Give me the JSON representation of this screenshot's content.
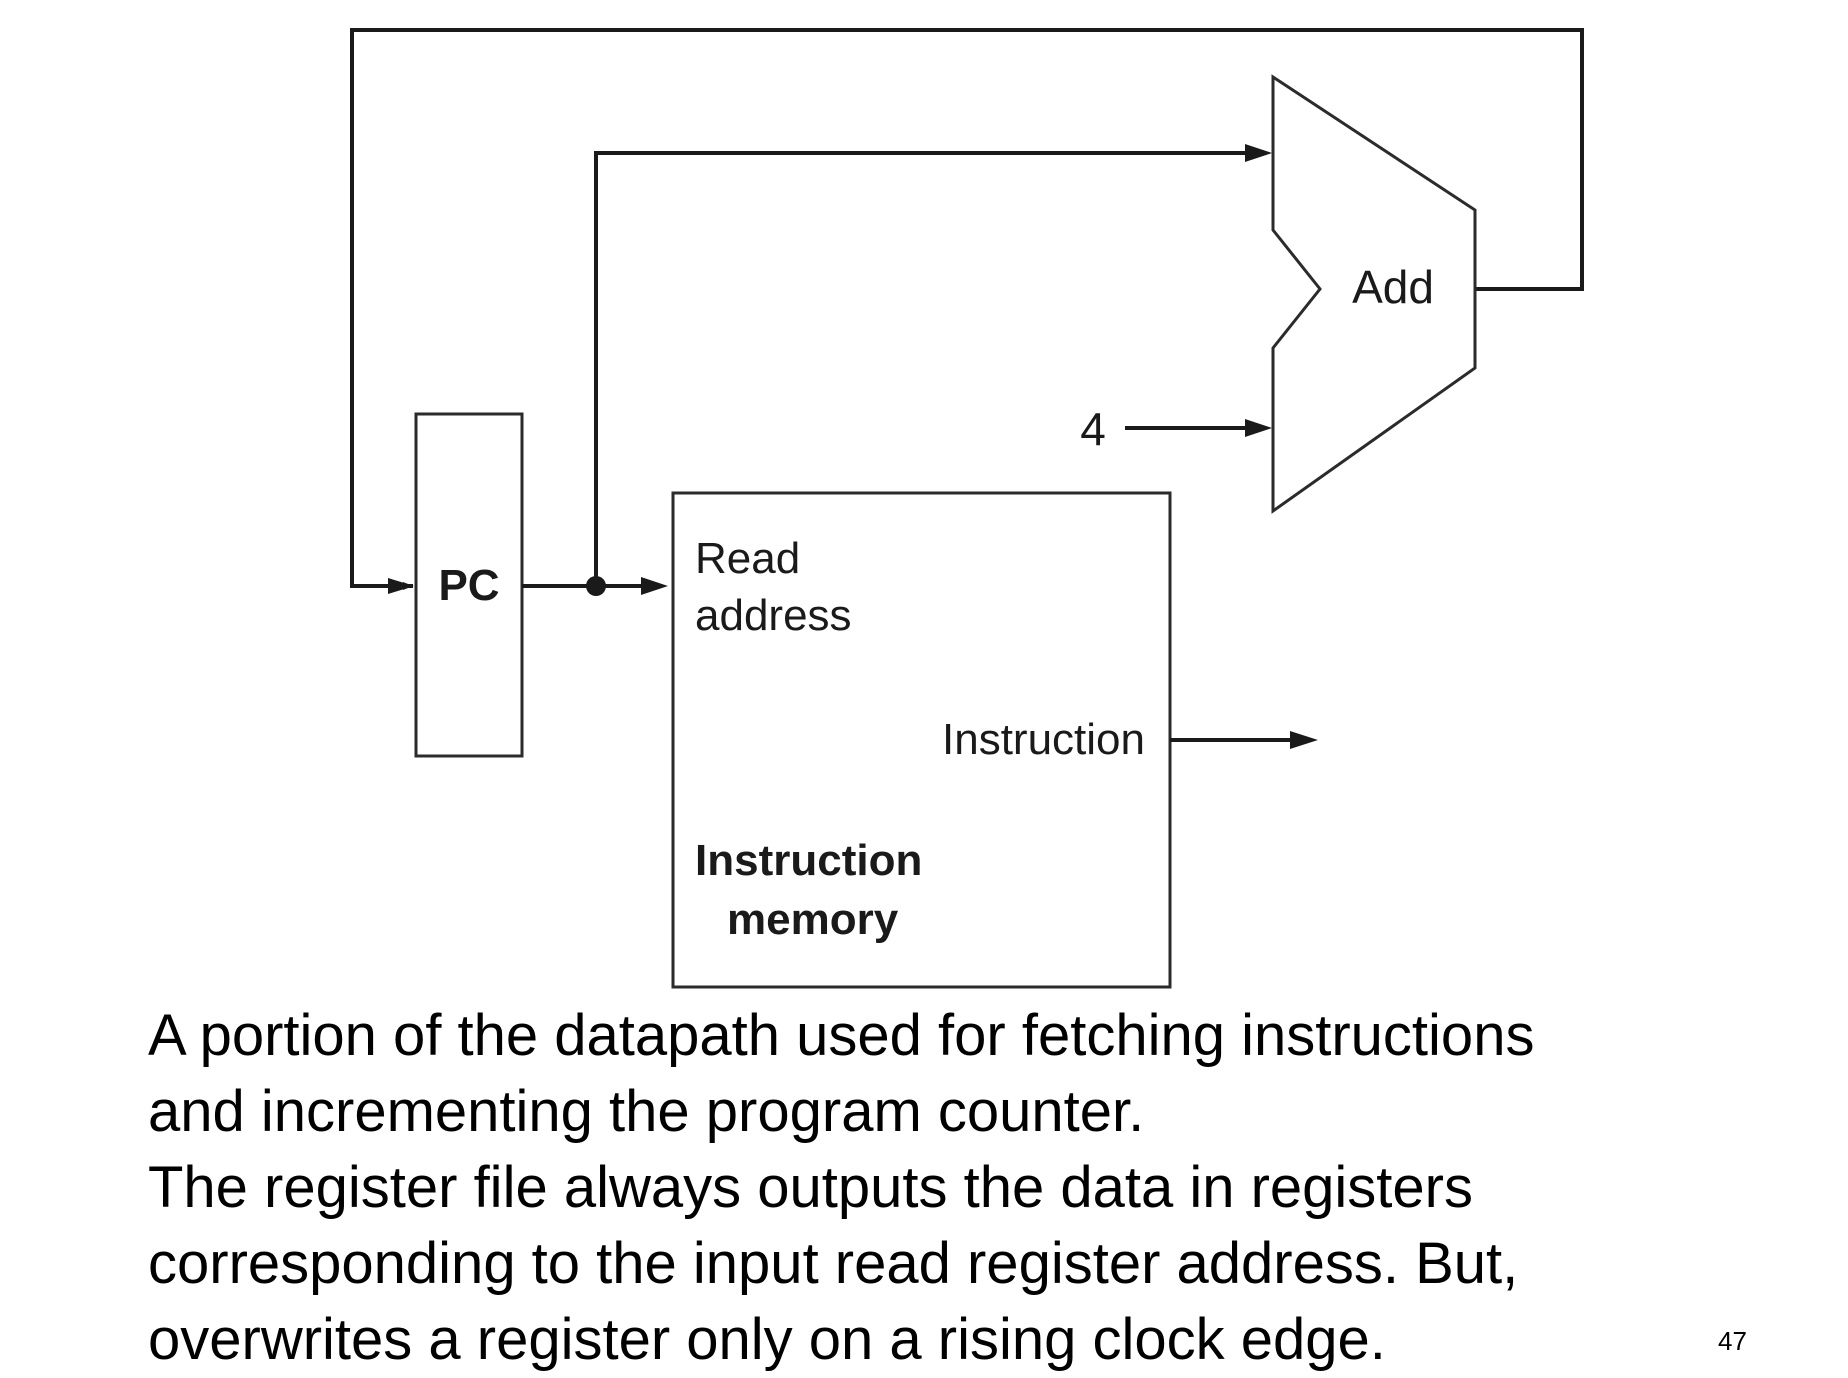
{
  "diagram": {
    "pc_label": "PC",
    "adder_label": "Add",
    "constant_label": "4",
    "memory": {
      "input_label_line1": "Read",
      "input_label_line2": "address",
      "output_label": "Instruction",
      "title_line1": "Instruction",
      "title_line2": "memory"
    }
  },
  "caption": {
    "lines": [
      "A portion of the datapath used for fetching instructions",
      "and incrementing the program counter.",
      "The register file always outputs the data in registers",
      "corresponding to the input read register address. But,",
      "overwrites a register only on a rising clock edge."
    ]
  },
  "slide_number": "47"
}
